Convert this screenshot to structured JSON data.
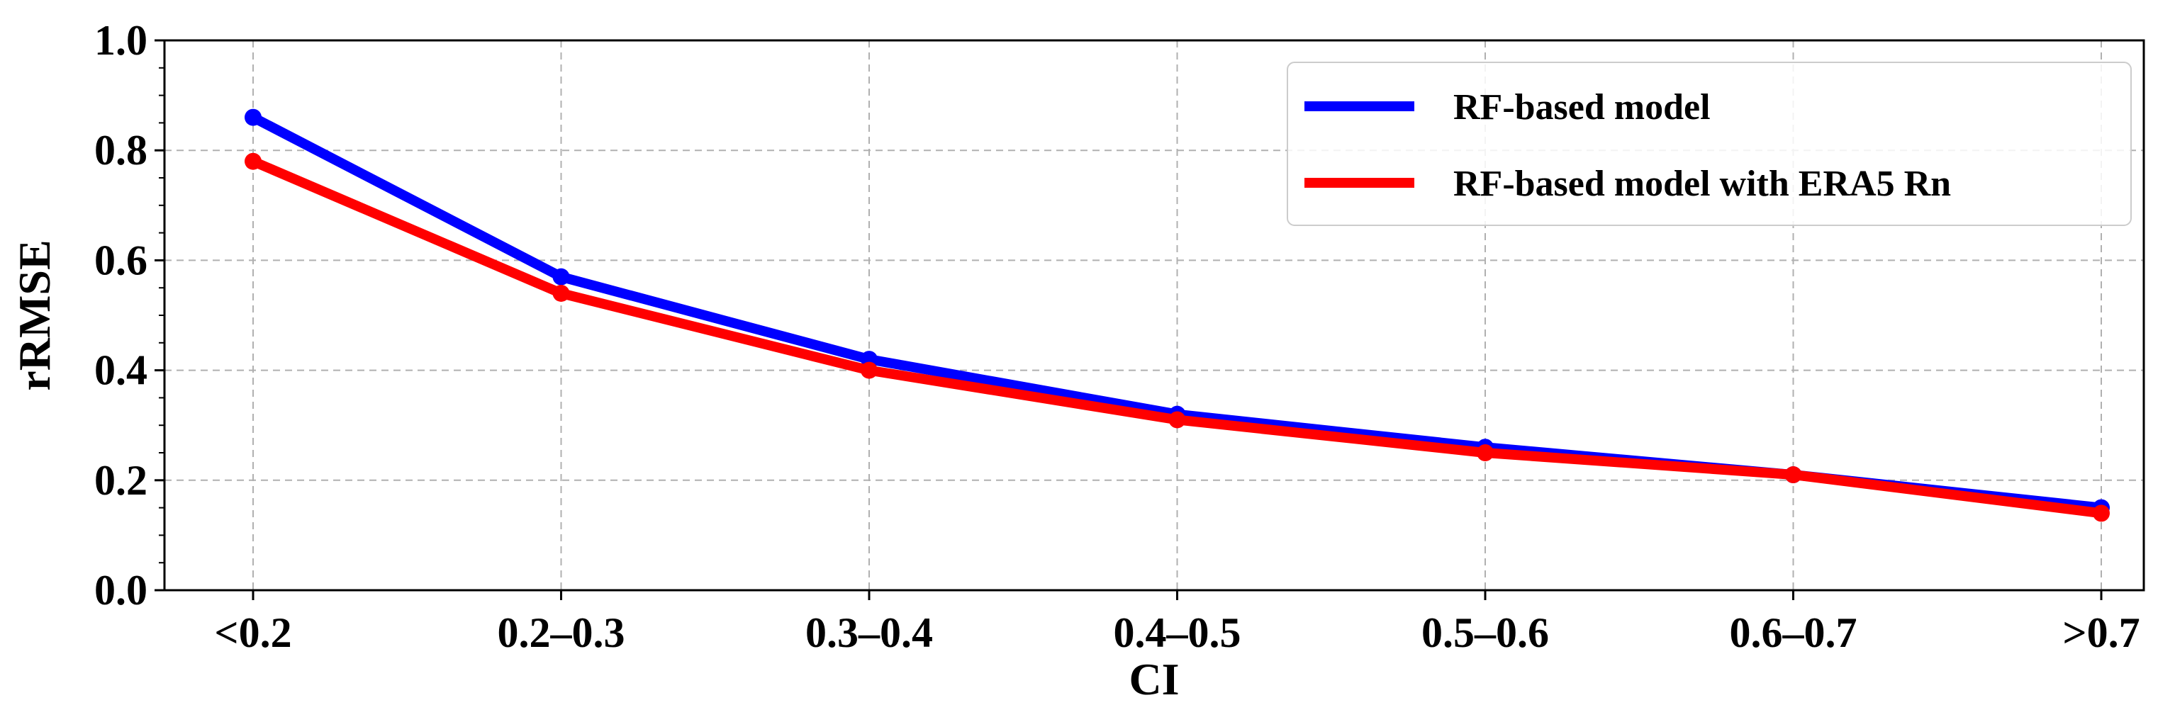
{
  "chart_data": {
    "type": "line",
    "xlabel": "CI",
    "ylabel": "rRMSE",
    "categories": [
      "<0.2",
      "0.2–0.3",
      "0.3–0.4",
      "0.4–0.5",
      "0.5–0.6",
      "0.6–0.7",
      ">0.7"
    ],
    "ylim": [
      0.0,
      1.0
    ],
    "yticks": [
      "0.0",
      "0.2",
      "0.4",
      "0.6",
      "0.8",
      "1.0"
    ],
    "grid": true,
    "legend_position": "top-right",
    "series": [
      {
        "name": "RF-based model",
        "color": "#0000ff",
        "values": [
          0.86,
          0.57,
          0.42,
          0.32,
          0.26,
          0.21,
          0.15
        ]
      },
      {
        "name": "RF-based model with ERA5 Rn",
        "color": "#ff0000",
        "values": [
          0.78,
          0.54,
          0.4,
          0.31,
          0.25,
          0.21,
          0.14
        ]
      }
    ]
  }
}
